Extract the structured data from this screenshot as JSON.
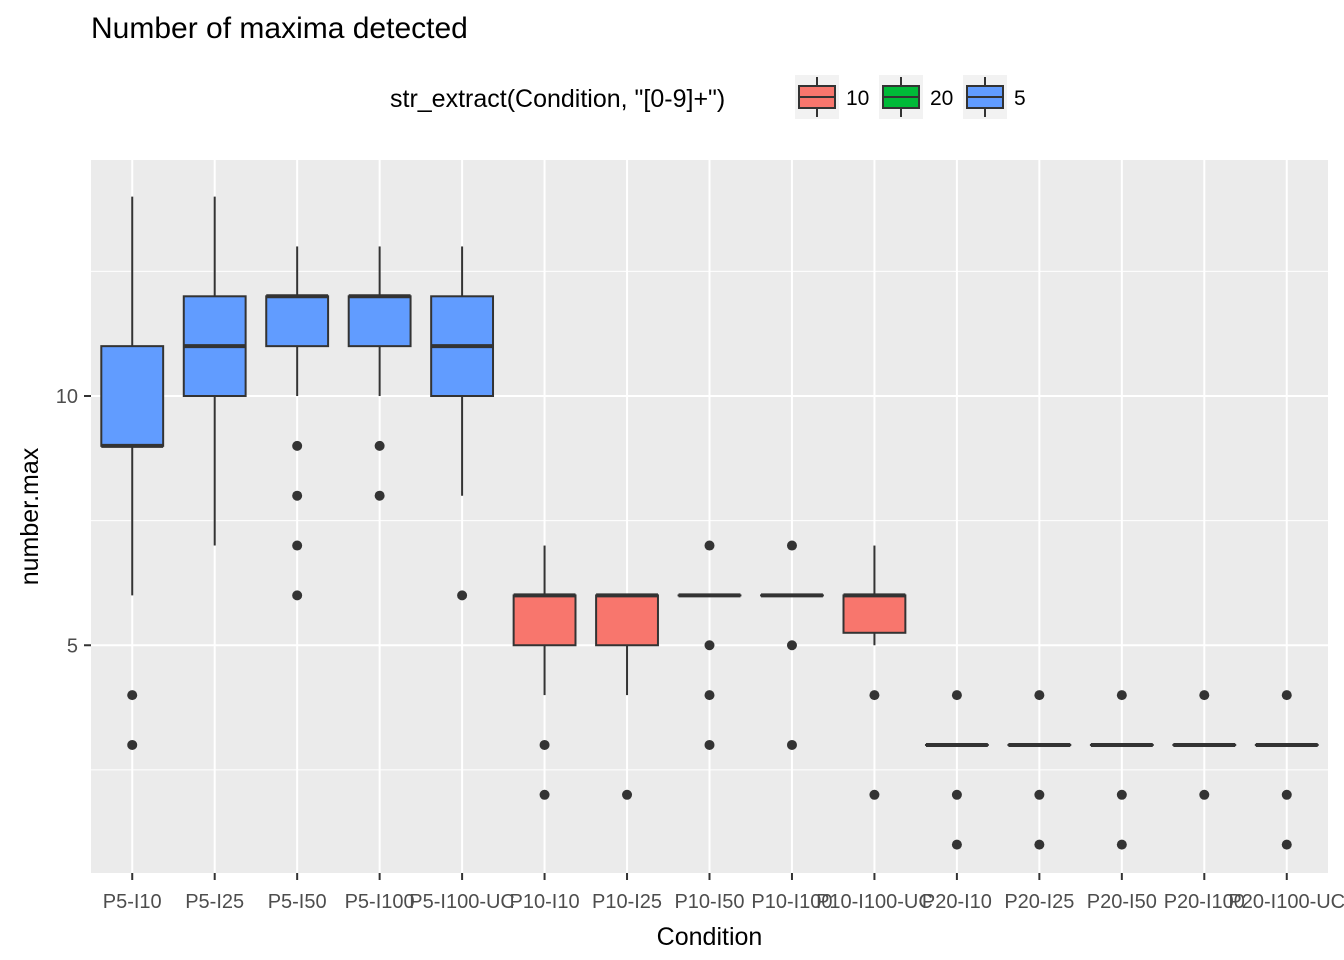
{
  "title": "Number of maxima detected",
  "chart_data": {
    "type": "boxplot",
    "title": "Number of maxima detected",
    "xlabel": "Condition",
    "ylabel": "number.max",
    "ylim": [
      0.5,
      14.5
    ],
    "y_ticks": [
      5,
      10
    ],
    "legend": {
      "title": "str_extract(Condition, \"[0-9]+\")",
      "position": "top",
      "entries": [
        {
          "label": "10",
          "color": "#F8766D"
        },
        {
          "label": "20",
          "color": "#00BA38"
        },
        {
          "label": "5",
          "color": "#619CFF"
        }
      ]
    },
    "categories": [
      "P5-I10",
      "P5-I25",
      "P5-I50",
      "P5-I100",
      "P5-I100-UC",
      "P10-I10",
      "P10-I25",
      "P10-I50",
      "P10-I100",
      "P10-I100-UC",
      "P20-I10",
      "P20-I25",
      "P20-I50",
      "P20-I100",
      "P20-I100-UC"
    ],
    "boxes": [
      {
        "group": "5",
        "min": 6,
        "q1": 9,
        "median": 9,
        "q3": 11,
        "max": 14,
        "outliers": [
          4,
          3
        ]
      },
      {
        "group": "5",
        "min": 7,
        "q1": 10,
        "median": 11,
        "q3": 12,
        "max": 14,
        "outliers": []
      },
      {
        "group": "5",
        "min": 10,
        "q1": 11,
        "median": 12,
        "q3": 12,
        "max": 13,
        "outliers": [
          9,
          8,
          7,
          6
        ]
      },
      {
        "group": "5",
        "min": 10,
        "q1": 11,
        "median": 12,
        "q3": 12,
        "max": 13,
        "outliers": [
          9,
          8
        ]
      },
      {
        "group": "5",
        "min": 8,
        "q1": 10,
        "median": 11,
        "q3": 12,
        "max": 13,
        "outliers": [
          6
        ]
      },
      {
        "group": "10",
        "min": 4,
        "q1": 5,
        "median": 6,
        "q3": 6,
        "max": 7,
        "outliers": [
          3,
          2
        ]
      },
      {
        "group": "10",
        "min": 4,
        "q1": 5,
        "median": 6,
        "q3": 6,
        "max": 6,
        "outliers": [
          2
        ]
      },
      {
        "group": "10",
        "min": 6,
        "q1": 6,
        "median": 6,
        "q3": 6,
        "max": 6,
        "outliers": [
          7,
          5,
          4,
          3
        ]
      },
      {
        "group": "10",
        "min": 6,
        "q1": 6,
        "median": 6,
        "q3": 6,
        "max": 6,
        "outliers": [
          7,
          5,
          3
        ]
      },
      {
        "group": "10",
        "min": 5,
        "q1": 5.25,
        "median": 6,
        "q3": 6,
        "max": 7,
        "outliers": [
          4,
          2
        ]
      },
      {
        "group": "20",
        "min": 3,
        "q1": 3,
        "median": 3,
        "q3": 3,
        "max": 3,
        "outliers": [
          4,
          2,
          1
        ]
      },
      {
        "group": "20",
        "min": 3,
        "q1": 3,
        "median": 3,
        "q3": 3,
        "max": 3,
        "outliers": [
          4,
          2,
          1
        ]
      },
      {
        "group": "20",
        "min": 3,
        "q1": 3,
        "median": 3,
        "q3": 3,
        "max": 3,
        "outliers": [
          4,
          2,
          1
        ]
      },
      {
        "group": "20",
        "min": 3,
        "q1": 3,
        "median": 3,
        "q3": 3,
        "max": 3,
        "outliers": [
          4,
          2
        ]
      },
      {
        "group": "20",
        "min": 3,
        "q1": 3,
        "median": 3,
        "q3": 3,
        "max": 3,
        "outliers": [
          4,
          2,
          1
        ]
      }
    ]
  }
}
